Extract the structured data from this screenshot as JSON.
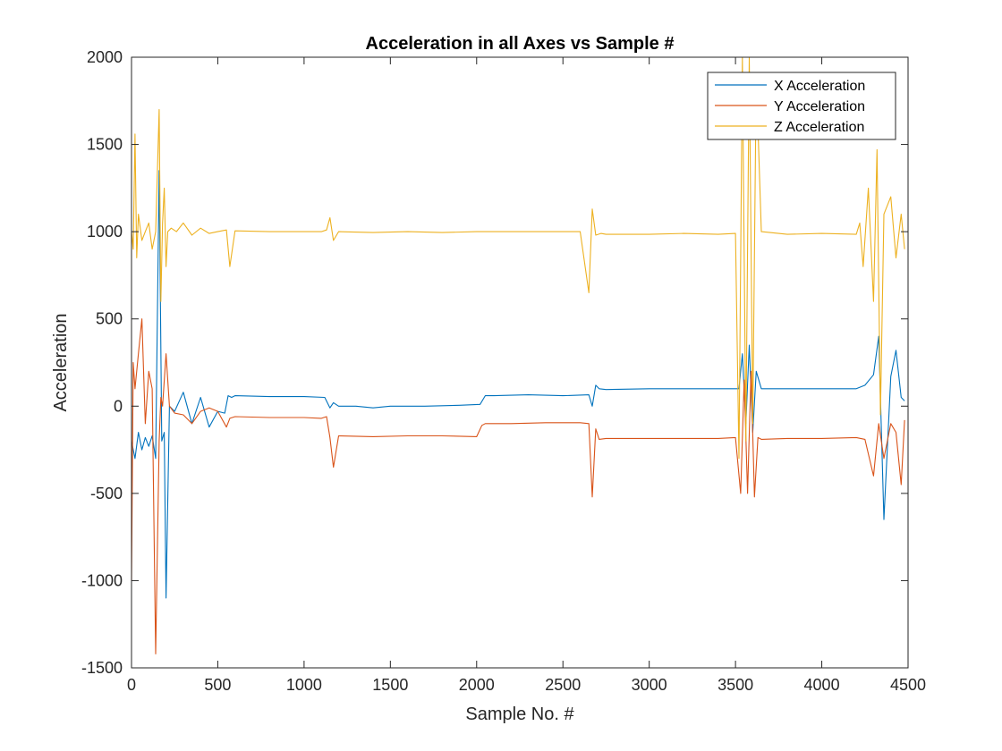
{
  "chart_data": {
    "type": "line",
    "title": "Acceleration in all Axes vs Sample #",
    "xlabel": "Sample No. #",
    "ylabel": "Acceleration",
    "xlim": [
      0,
      4500
    ],
    "ylim": [
      -1500,
      2000
    ],
    "xticks": [
      0,
      500,
      1000,
      1500,
      2000,
      2500,
      3000,
      3500,
      4000,
      4500
    ],
    "yticks": [
      -1500,
      -1000,
      -500,
      0,
      500,
      1000,
      1500,
      2000
    ],
    "xtick_labels": [
      "0",
      "500",
      "1000",
      "1500",
      "2000",
      "2500",
      "3000",
      "3500",
      "4000",
      "4500"
    ],
    "ytick_labels": [
      "-1500",
      "-1000",
      "-500",
      "0",
      "500",
      "1000",
      "1500",
      "2000"
    ],
    "grid": false,
    "legend_position": "top-right",
    "series": [
      {
        "name": "X Acceleration",
        "color": "#0072BD",
        "x": [
          0,
          20,
          40,
          60,
          80,
          100,
          120,
          140,
          160,
          175,
          190,
          200,
          220,
          250,
          300,
          350,
          400,
          450,
          500,
          540,
          560,
          580,
          600,
          800,
          1000,
          1120,
          1150,
          1170,
          1200,
          1300,
          1400,
          1500,
          1700,
          1900,
          2020,
          2050,
          2100,
          2300,
          2500,
          2650,
          2670,
          2690,
          2710,
          2750,
          3000,
          3200,
          3400,
          3520,
          3540,
          3560,
          3580,
          3600,
          3620,
          3650,
          3800,
          4000,
          4200,
          4250,
          4300,
          4330,
          4360,
          4400,
          4430,
          4460,
          4480
        ],
        "y": [
          -200,
          -300,
          -150,
          -250,
          -180,
          -230,
          -170,
          -300,
          1350,
          -200,
          -150,
          -1100,
          0,
          -30,
          80,
          -100,
          50,
          -120,
          -30,
          -40,
          60,
          50,
          60,
          55,
          55,
          50,
          -10,
          20,
          0,
          0,
          -10,
          0,
          0,
          5,
          10,
          60,
          60,
          65,
          60,
          65,
          0,
          120,
          100,
          95,
          100,
          100,
          100,
          100,
          300,
          -100,
          350,
          -150,
          200,
          100,
          100,
          100,
          100,
          120,
          180,
          400,
          -650,
          170,
          320,
          50,
          30
        ]
      },
      {
        "name": "Y Acceleration",
        "color": "#D95319",
        "x": [
          0,
          10,
          20,
          40,
          60,
          80,
          100,
          120,
          140,
          160,
          170,
          180,
          200,
          220,
          250,
          300,
          350,
          400,
          450,
          500,
          550,
          570,
          600,
          800,
          1000,
          1100,
          1130,
          1150,
          1170,
          1200,
          1400,
          1600,
          1800,
          2000,
          2030,
          2050,
          2200,
          2400,
          2600,
          2650,
          2670,
          2690,
          2710,
          2750,
          3000,
          3200,
          3400,
          3500,
          3530,
          3550,
          3570,
          3590,
          3610,
          3630,
          3650,
          3800,
          4000,
          4200,
          4250,
          4300,
          4330,
          4360,
          4400,
          4430,
          4460,
          4480
        ],
        "y": [
          -1000,
          250,
          100,
          300,
          500,
          -100,
          200,
          100,
          -1420,
          -200,
          50,
          0,
          300,
          0,
          -40,
          -50,
          -100,
          -30,
          -10,
          -30,
          -120,
          -70,
          -60,
          -65,
          -65,
          -70,
          -60,
          -180,
          -350,
          -170,
          -175,
          -170,
          -170,
          -175,
          -110,
          -100,
          -100,
          -95,
          -95,
          -100,
          -520,
          -130,
          -190,
          -185,
          -185,
          -185,
          -185,
          -180,
          -500,
          150,
          -500,
          200,
          -520,
          -180,
          -190,
          -185,
          -185,
          -180,
          -190,
          -400,
          -100,
          -300,
          -100,
          -150,
          -450,
          -80
        ]
      },
      {
        "name": "Z Acceleration",
        "color": "#EDB120",
        "x": [
          0,
          10,
          20,
          30,
          40,
          60,
          80,
          100,
          120,
          140,
          160,
          170,
          180,
          190,
          200,
          210,
          230,
          260,
          300,
          350,
          400,
          450,
          500,
          550,
          570,
          600,
          800,
          1000,
          1100,
          1130,
          1150,
          1170,
          1200,
          1400,
          1600,
          1800,
          2000,
          2100,
          2400,
          2600,
          2650,
          2670,
          2690,
          2720,
          2750,
          3000,
          3200,
          3400,
          3500,
          3520,
          3540,
          3560,
          3580,
          3600,
          3620,
          3650,
          3800,
          4000,
          4200,
          4220,
          4240,
          4270,
          4300,
          4320,
          4340,
          4360,
          4400,
          4430,
          4460,
          4480
        ],
        "y": [
          1000,
          900,
          1560,
          850,
          1100,
          950,
          1000,
          1050,
          900,
          1000,
          1700,
          600,
          1050,
          1250,
          800,
          1000,
          1020,
          1000,
          1050,
          980,
          1020,
          990,
          1000,
          1010,
          800,
          1005,
          1000,
          1000,
          1000,
          1010,
          1080,
          950,
          1000,
          995,
          1000,
          995,
          1000,
          1000,
          1000,
          1000,
          650,
          1130,
          980,
          990,
          985,
          985,
          990,
          985,
          990,
          -300,
          2000,
          -200,
          2000,
          -100,
          1900,
          1000,
          985,
          990,
          985,
          1050,
          800,
          1250,
          600,
          1470,
          -50,
          1100,
          1200,
          850,
          1100,
          900
        ]
      }
    ]
  }
}
